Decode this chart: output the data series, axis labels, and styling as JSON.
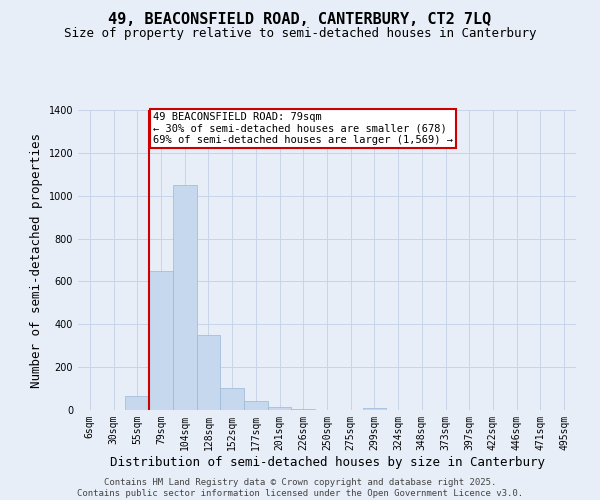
{
  "title_line1": "49, BEACONSFIELD ROAD, CANTERBURY, CT2 7LQ",
  "title_line2": "Size of property relative to semi-detached houses in Canterbury",
  "xlabel": "Distribution of semi-detached houses by size in Canterbury",
  "ylabel": "Number of semi-detached properties",
  "annotation_title": "49 BEACONSFIELD ROAD: 79sqm",
  "annotation_line2": "← 30% of semi-detached houses are smaller (678)",
  "annotation_line3": "69% of semi-detached houses are larger (1,569) →",
  "footer_line1": "Contains HM Land Registry data © Crown copyright and database right 2025.",
  "footer_line2": "Contains public sector information licensed under the Open Government Licence v3.0.",
  "categories": [
    "6sqm",
    "30sqm",
    "55sqm",
    "79sqm",
    "104sqm",
    "128sqm",
    "152sqm",
    "177sqm",
    "201sqm",
    "226sqm",
    "250sqm",
    "275sqm",
    "299sqm",
    "324sqm",
    "348sqm",
    "373sqm",
    "397sqm",
    "422sqm",
    "446sqm",
    "471sqm",
    "495sqm"
  ],
  "values": [
    0,
    0,
    65,
    650,
    1050,
    350,
    105,
    40,
    15,
    5,
    0,
    0,
    10,
    0,
    0,
    0,
    0,
    0,
    0,
    0,
    0
  ],
  "bar_color": "#c5d8ed",
  "bar_edge_color": "#9ab8d8",
  "red_line_x": 2.5,
  "ylim": [
    0,
    1400
  ],
  "yticks": [
    0,
    200,
    400,
    600,
    800,
    1000,
    1200,
    1400
  ],
  "background_color": "#e8eef8",
  "grid_color": "#c8d4e8",
  "annotation_box_facecolor": "#ffffff",
  "annotation_box_edgecolor": "#cc0000",
  "red_line_color": "#cc0000",
  "title_fontsize": 11,
  "subtitle_fontsize": 9,
  "axis_label_fontsize": 9,
  "tick_fontsize": 7,
  "annotation_fontsize": 7.5,
  "footer_fontsize": 6.5
}
